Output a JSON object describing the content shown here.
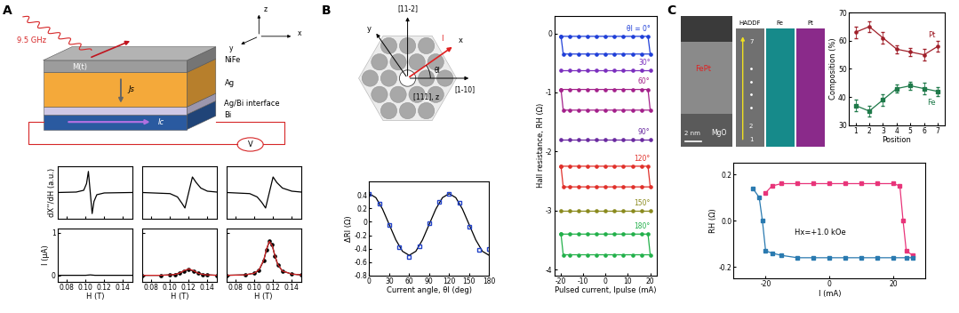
{
  "panel_labels": [
    "A",
    "B",
    "C"
  ],
  "schematic_A": {
    "microwave": "9.5 GHz",
    "layers": [
      "NiFe",
      "Ag",
      "Ag/Bi interface",
      "Bi"
    ],
    "magnetization": "M(t)",
    "spin_current": "Js",
    "charge_current": "Ic",
    "voltmeter": "V",
    "axes": [
      "z",
      "x",
      "y"
    ]
  },
  "crystal_B": {
    "directions": [
      "[11-2]",
      "[1-10]",
      "[111], z"
    ],
    "axes": [
      "x",
      "y"
    ],
    "current": "I",
    "angle": "θI"
  },
  "image_C": {
    "texts": [
      "FePt",
      "MgO",
      "HADDF",
      "Fe",
      "Pt"
    ],
    "scale_bar": "2 nm",
    "position_labels": [
      7,
      2,
      1
    ]
  },
  "chart_data": [
    {
      "type": "line",
      "ylabel": "dX''/dH (a.u.)",
      "tick_labels": false,
      "xlim": [
        0.07,
        0.15
      ],
      "xticks": [
        0.08,
        0.1,
        0.12,
        0.14
      ],
      "ylim": [
        -1.2,
        1.2
      ],
      "yticks": [],
      "x": [
        0.07,
        0.09,
        0.098,
        0.101,
        0.103,
        0.105,
        0.107,
        0.109,
        0.112,
        0.12,
        0.15
      ],
      "series": [
        {
          "color": "#000000",
          "values": [
            0,
            0.02,
            0.1,
            0.4,
            0.95,
            0,
            -0.95,
            -0.4,
            -0.1,
            -0.02,
            0
          ]
        }
      ]
    },
    {
      "type": "line",
      "tick_labels": false,
      "xlim": [
        0.07,
        0.15
      ],
      "xticks": [
        0.08,
        0.1,
        0.12,
        0.14
      ],
      "ylim": [
        -1.2,
        1.2
      ],
      "yticks": [],
      "x": [
        0.07,
        0.1,
        0.108,
        0.113,
        0.116,
        0.12,
        0.124,
        0.128,
        0.133,
        0.14,
        0.15
      ],
      "series": [
        {
          "color": "#000000",
          "values": [
            0,
            -0.05,
            -0.2,
            -0.5,
            -0.7,
            0,
            0.7,
            0.45,
            0.2,
            0.06,
            0.02
          ]
        }
      ]
    },
    {
      "type": "line",
      "tick_labels": false,
      "xlim": [
        0.07,
        0.15
      ],
      "xticks": [
        0.08,
        0.1,
        0.12,
        0.14
      ],
      "ylim": [
        -1.2,
        1.2
      ],
      "yticks": [],
      "x": [
        0.07,
        0.095,
        0.103,
        0.108,
        0.112,
        0.116,
        0.12,
        0.124,
        0.13,
        0.14,
        0.15
      ],
      "series": [
        {
          "color": "#000000",
          "values": [
            0,
            -0.05,
            -0.2,
            -0.45,
            -0.7,
            0,
            0.7,
            0.45,
            0.2,
            0.06,
            0.02
          ]
        }
      ]
    },
    {
      "type": "line",
      "ylabel": "I (μA)",
      "xlabel": "H (T)",
      "xlim": [
        0.07,
        0.15
      ],
      "xticks": [
        0.08,
        {
          "value": 0.1,
          "label": "0.10"
        },
        0.12,
        0.14
      ],
      "ylim": [
        -0.15,
        1.1
      ],
      "yticks": [
        0,
        1
      ],
      "x": [
        0.07,
        0.09,
        0.1,
        0.105,
        0.11,
        0.12,
        0.15
      ],
      "series": [
        {
          "color": "#000000",
          "values": [
            0,
            0,
            0,
            0.01,
            0,
            0,
            0
          ]
        }
      ]
    },
    {
      "type": "line",
      "xlabel": "H (T)",
      "tick_labels": "x",
      "xlim": [
        0.07,
        0.15
      ],
      "xticks": [
        0.08,
        {
          "value": 0.1,
          "label": "0.10"
        },
        0.12,
        0.14
      ],
      "ylim": [
        -0.15,
        1.1
      ],
      "yticks": [
        0,
        1
      ],
      "x": [
        0.07,
        0.09,
        0.1,
        0.105,
        0.11,
        0.115,
        0.12,
        0.125,
        0.13,
        0.135,
        0.14,
        0.15
      ],
      "series": [
        {
          "color": "#000000",
          "marker": "circle",
          "values": [
            0,
            0,
            0.01,
            0.02,
            0.05,
            0.1,
            0.14,
            0.1,
            0.05,
            0.02,
            0.01,
            0
          ]
        },
        {
          "color": "#d62728",
          "values": [
            0,
            0,
            0.01,
            0.02,
            0.05,
            0.11,
            0.15,
            0.11,
            0.05,
            0.02,
            0.01,
            0
          ]
        }
      ]
    },
    {
      "type": "line",
      "xlabel": "H (T)",
      "tick_labels": "x",
      "xlim": [
        0.07,
        0.15
      ],
      "xticks": [
        0.08,
        {
          "value": 0.1,
          "label": "0.10"
        },
        0.12,
        0.14
      ],
      "ylim": [
        -0.15,
        1.1
      ],
      "yticks": [
        0,
        1
      ],
      "x": [
        0.07,
        0.09,
        0.1,
        0.105,
        0.11,
        0.113,
        0.116,
        0.119,
        0.122,
        0.125,
        0.13,
        0.14,
        0.15
      ],
      "series": [
        {
          "color": "#000000",
          "marker": "circle",
          "values": [
            0,
            0.01,
            0.05,
            0.12,
            0.35,
            0.6,
            0.8,
            0.72,
            0.45,
            0.25,
            0.1,
            0.03,
            0.01
          ]
        },
        {
          "color": "#d62728",
          "values": [
            0,
            0.01,
            0.05,
            0.13,
            0.36,
            0.62,
            0.8,
            0.7,
            0.46,
            0.26,
            0.1,
            0.03,
            0.01
          ]
        }
      ]
    },
    {
      "type": "line",
      "xlabel": "Current angle, θI (deg)",
      "ylabel": "ΔRI (Ω)",
      "xlim": [
        0,
        180
      ],
      "xticks": [
        0,
        30,
        60,
        90,
        120,
        150,
        180
      ],
      "ylim": [
        -0.8,
        0.6
      ],
      "yticks": [
        -0.8,
        -0.6,
        -0.4,
        -0.2,
        0,
        0.2,
        0.4
      ],
      "series": [
        {
          "color": "#000000",
          "x": [
            0,
            10,
            20,
            30,
            40,
            50,
            60,
            70,
            80,
            90,
            100,
            110,
            120,
            130,
            140,
            150,
            160,
            170,
            180
          ],
          "values": [
            0.42,
            0.36,
            0.19,
            -0.04,
            -0.27,
            -0.44,
            -0.5,
            -0.44,
            -0.27,
            -0.04,
            0.19,
            0.36,
            0.42,
            0.36,
            0.19,
            -0.04,
            -0.27,
            -0.44,
            -0.5
          ]
        },
        {
          "color": "#2343c8",
          "marker": "square_open",
          "line_style": "none",
          "x": [
            0,
            15,
            30,
            45,
            60,
            75,
            90,
            105,
            120,
            135,
            150,
            165,
            180
          ],
          "values": [
            0.42,
            0.27,
            -0.05,
            -0.38,
            -0.52,
            -0.36,
            -0.02,
            0.3,
            0.42,
            0.28,
            -0.08,
            -0.42,
            -0.4
          ]
        }
      ]
    },
    {
      "type": "line",
      "xlabel": "Pulsed current, Ipulse (mA)",
      "ylabel": "Hall resistance, RH (Ω)",
      "xlim": [
        -23,
        23
      ],
      "xticks": [
        -20,
        -10,
        0,
        10,
        20
      ],
      "ylim": [
        -4.1,
        0.3
      ],
      "yticks": [
        -4,
        -3,
        -2,
        -1,
        0
      ],
      "series": [
        {
          "name": "θI = 0°",
          "color": "#1f3fd8",
          "marker": "circle",
          "x": [
            -20,
            -16,
            -12,
            -8,
            -4,
            0,
            4,
            8,
            12,
            16,
            19,
            20,
            16,
            12,
            8,
            4,
            0,
            -4,
            -8,
            -12,
            -16,
            -19,
            -20
          ],
          "values": [
            -0.05,
            -0.05,
            -0.05,
            -0.05,
            -0.05,
            -0.05,
            -0.05,
            -0.05,
            -0.05,
            -0.05,
            -0.05,
            -0.35,
            -0.35,
            -0.35,
            -0.35,
            -0.35,
            -0.35,
            -0.35,
            -0.35,
            -0.35,
            -0.35,
            -0.35,
            -0.05
          ]
        },
        {
          "name": "30°",
          "color": "#7b2fbe",
          "marker": "circle",
          "x": [
            -20,
            -16,
            -12,
            -8,
            -4,
            0,
            4,
            8,
            12,
            16,
            20
          ],
          "values": [
            -0.62,
            -0.62,
            -0.62,
            -0.62,
            -0.62,
            -0.62,
            -0.62,
            -0.62,
            -0.62,
            -0.62,
            -0.62
          ]
        },
        {
          "name": "60°",
          "color": "#a3208a",
          "marker": "circle",
          "x": [
            -20,
            -16,
            -12,
            -8,
            -4,
            0,
            4,
            8,
            12,
            16,
            19,
            20,
            16,
            12,
            8,
            4,
            0,
            -4,
            -8,
            -12,
            -16,
            -19,
            -20
          ],
          "values": [
            -0.95,
            -0.95,
            -0.95,
            -0.95,
            -0.95,
            -0.95,
            -0.95,
            -0.95,
            -0.95,
            -0.95,
            -0.95,
            -1.3,
            -1.3,
            -1.3,
            -1.3,
            -1.3,
            -1.3,
            -1.3,
            -1.3,
            -1.3,
            -1.3,
            -1.3,
            -0.95
          ]
        },
        {
          "name": "90°",
          "color": "#6a2aa0",
          "marker": "circle",
          "x": [
            -20,
            -16,
            -12,
            -8,
            -4,
            0,
            4,
            8,
            12,
            16,
            20
          ],
          "values": [
            -1.8,
            -1.8,
            -1.8,
            -1.8,
            -1.8,
            -1.8,
            -1.8,
            -1.8,
            -1.8,
            -1.8,
            -1.8
          ]
        },
        {
          "name": "120°",
          "color": "#e0302a",
          "marker": "circle",
          "x": [
            -20,
            -16,
            -12,
            -8,
            -4,
            0,
            4,
            8,
            12,
            16,
            19,
            20,
            16,
            12,
            8,
            4,
            0,
            -4,
            -8,
            -12,
            -16,
            -19,
            -20
          ],
          "values": [
            -2.25,
            -2.25,
            -2.25,
            -2.25,
            -2.25,
            -2.25,
            -2.25,
            -2.25,
            -2.25,
            -2.25,
            -2.25,
            -2.6,
            -2.6,
            -2.6,
            -2.6,
            -2.6,
            -2.6,
            -2.6,
            -2.6,
            -2.6,
            -2.6,
            -2.6,
            -2.25
          ]
        },
        {
          "name": "150°",
          "color": "#8a8a1e",
          "marker": "circle",
          "x": [
            -20,
            -16,
            -12,
            -8,
            -4,
            0,
            4,
            8,
            12,
            16,
            20
          ],
          "values": [
            -3.0,
            -3.0,
            -3.0,
            -3.0,
            -3.0,
            -3.0,
            -3.0,
            -3.0,
            -3.0,
            -3.0,
            -3.0
          ]
        },
        {
          "name": "180°",
          "color": "#22b04a",
          "marker": "circle",
          "x": [
            -20,
            -16,
            -12,
            -8,
            -4,
            0,
            4,
            8,
            12,
            16,
            19,
            20,
            16,
            12,
            8,
            4,
            0,
            -4,
            -8,
            -12,
            -16,
            -19,
            -20
          ],
          "values": [
            -3.4,
            -3.4,
            -3.4,
            -3.4,
            -3.4,
            -3.4,
            -3.4,
            -3.4,
            -3.4,
            -3.4,
            -3.4,
            -3.75,
            -3.75,
            -3.75,
            -3.75,
            -3.75,
            -3.75,
            -3.75,
            -3.75,
            -3.75,
            -3.75,
            -3.75,
            -3.4
          ]
        }
      ]
    },
    {
      "type": "line",
      "xlabel": "Position",
      "ylabel": "Composition (%)",
      "xlim": [
        0.5,
        7.5
      ],
      "xticks": [
        1,
        2,
        3,
        4,
        5,
        6,
        7
      ],
      "ylim": [
        30,
        70
      ],
      "yticks": [
        30,
        40,
        50,
        60,
        70
      ],
      "x": [
        1,
        2,
        3,
        4,
        5,
        6,
        7
      ],
      "series": [
        {
          "name": "Pt",
          "color": "#a0202a",
          "marker": "circle",
          "values": [
            63,
            65,
            61,
            57,
            56,
            55,
            58
          ],
          "error": [
            2,
            2,
            2,
            1.5,
            1.5,
            2,
            2
          ]
        },
        {
          "name": "Fe",
          "color": "#1f7a4a",
          "marker": "square",
          "values": [
            37,
            35,
            39,
            43,
            44,
            43,
            42
          ],
          "error": [
            2,
            2,
            2,
            1.5,
            1.5,
            2,
            1.5
          ]
        }
      ]
    },
    {
      "type": "line",
      "xlabel": "I (mA)",
      "ylabel": "RH (Ω)",
      "annotations": [
        {
          "text": "Hx=+1.0 kOe"
        }
      ],
      "xlim": [
        -30,
        30
      ],
      "xticks": [
        -20,
        0,
        20
      ],
      "ylim": [
        -0.25,
        0.25
      ],
      "yticks": [
        -0.2,
        {
          "value": 0,
          "label": "0.0"
        },
        0.2
      ],
      "series": [
        {
          "color": "#e8357a",
          "marker": "square",
          "x": [
            -20,
            -18,
            -15,
            -10,
            -5,
            0,
            5,
            10,
            15,
            20,
            22,
            23,
            24,
            26
          ],
          "values": [
            0.12,
            0.15,
            0.16,
            0.16,
            0.16,
            0.16,
            0.16,
            0.16,
            0.16,
            0.16,
            0.15,
            0.0,
            -0.13,
            -0.15
          ]
        },
        {
          "color": "#2a7ab0",
          "marker": "square",
          "x": [
            26,
            24,
            20,
            15,
            10,
            5,
            0,
            -5,
            -10,
            -15,
            -18,
            -20,
            -21,
            -22,
            -24
          ],
          "values": [
            -0.16,
            -0.16,
            -0.16,
            -0.16,
            -0.16,
            -0.16,
            -0.16,
            -0.16,
            -0.16,
            -0.15,
            -0.14,
            -0.13,
            0.0,
            0.1,
            0.14
          ]
        }
      ]
    }
  ]
}
